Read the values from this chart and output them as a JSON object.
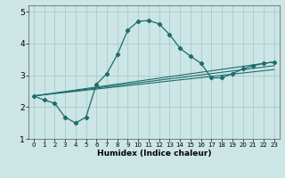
{
  "xlabel": "Humidex (Indice chaleur)",
  "bg_color": "#cce5e5",
  "grid_color": "#9fc8c8",
  "line_color": "#1e6b6b",
  "xlim": [
    -0.5,
    23.5
  ],
  "ylim": [
    1,
    5.2
  ],
  "yticks": [
    1,
    2,
    3,
    4,
    5
  ],
  "xticks": [
    0,
    1,
    2,
    3,
    4,
    5,
    6,
    7,
    8,
    9,
    10,
    11,
    12,
    13,
    14,
    15,
    16,
    17,
    18,
    19,
    20,
    21,
    22,
    23
  ],
  "main_x": [
    0,
    1,
    2,
    3,
    4,
    5,
    6,
    7,
    8,
    9,
    10,
    11,
    12,
    13,
    14,
    15,
    16,
    17,
    18,
    19,
    20,
    21,
    22,
    23
  ],
  "main_y": [
    2.35,
    2.22,
    2.12,
    1.68,
    1.5,
    1.68,
    2.72,
    3.05,
    3.65,
    4.42,
    4.7,
    4.72,
    4.62,
    4.28,
    3.85,
    3.6,
    3.38,
    2.92,
    2.92,
    3.05,
    3.2,
    3.3,
    3.37,
    3.42
  ],
  "line2_x": [
    0,
    23
  ],
  "line2_y": [
    2.35,
    3.42
  ],
  "line3_x": [
    0,
    23
  ],
  "line3_y": [
    2.35,
    3.3
  ],
  "line4_x": [
    0,
    23
  ],
  "line4_y": [
    2.35,
    3.18
  ]
}
